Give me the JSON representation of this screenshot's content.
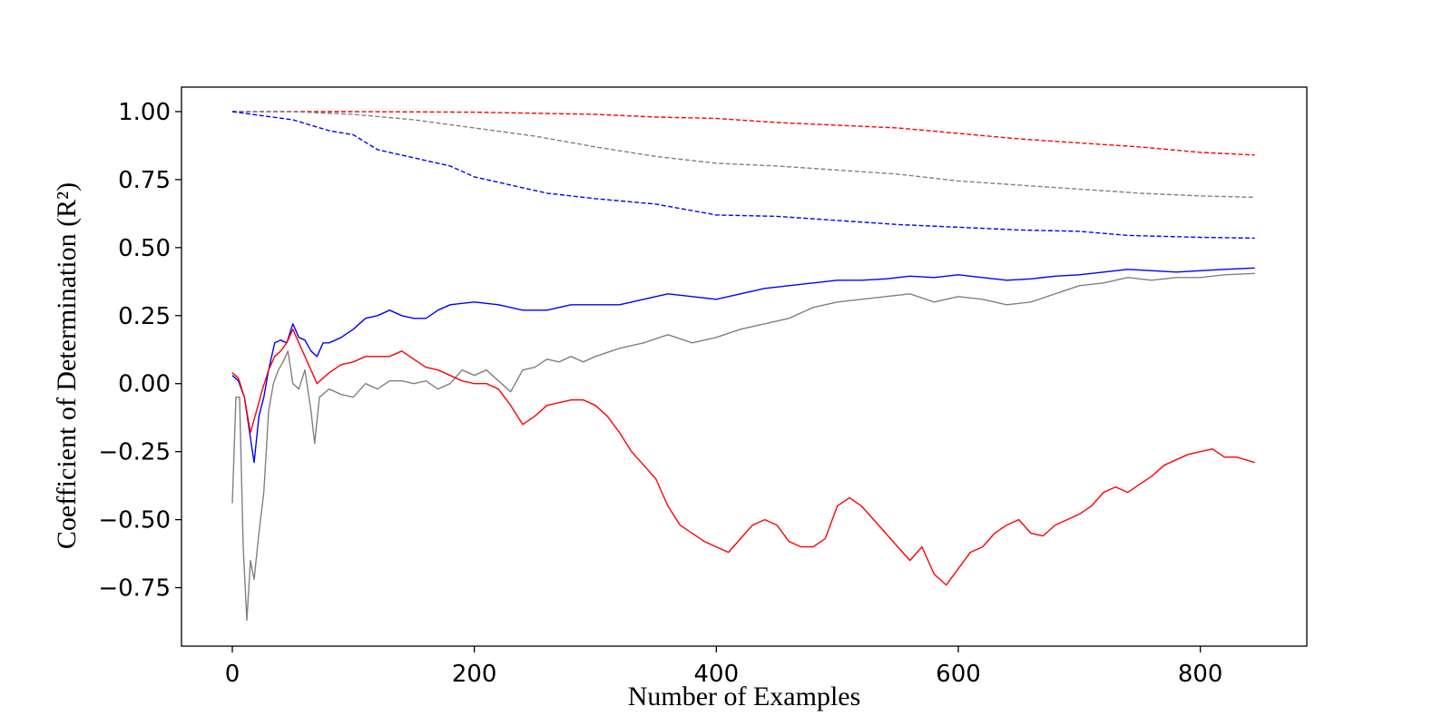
{
  "chart_data": {
    "type": "line",
    "title": "",
    "xlabel": "Number of Examples",
    "ylabel": "Coefficient of Determination (R²)",
    "xlim": [
      -42,
      888
    ],
    "ylim": [
      -0.965,
      1.09
    ],
    "xticks": [
      0,
      200,
      400,
      600,
      800
    ],
    "yticks": [
      1.0,
      0.75,
      0.5,
      0.25,
      0.0,
      -0.25,
      -0.5,
      -0.75
    ],
    "xtick_labels": [
      "0",
      "200",
      "400",
      "600",
      "800"
    ],
    "ytick_labels": [
      "1.00",
      "0.75",
      "0.50",
      "0.25",
      "0.00",
      "−0.25",
      "−0.50",
      "−0.75"
    ],
    "grid": false,
    "legend": "none",
    "series": [
      {
        "color": "#ff0000",
        "style": "dashed",
        "points": [
          [
            0,
            1.0
          ],
          [
            100,
            1.0
          ],
          [
            200,
            0.998
          ],
          [
            300,
            0.99
          ],
          [
            350,
            0.98
          ],
          [
            400,
            0.975
          ],
          [
            450,
            0.96
          ],
          [
            500,
            0.95
          ],
          [
            550,
            0.94
          ],
          [
            600,
            0.92
          ],
          [
            650,
            0.9
          ],
          [
            700,
            0.885
          ],
          [
            750,
            0.87
          ],
          [
            800,
            0.85
          ],
          [
            845,
            0.84
          ]
        ]
      },
      {
        "color": "#808080",
        "style": "dashed",
        "points": [
          [
            0,
            1.0
          ],
          [
            50,
            1.0
          ],
          [
            100,
            0.99
          ],
          [
            150,
            0.97
          ],
          [
            200,
            0.94
          ],
          [
            250,
            0.91
          ],
          [
            300,
            0.87
          ],
          [
            350,
            0.835
          ],
          [
            400,
            0.81
          ],
          [
            450,
            0.8
          ],
          [
            500,
            0.785
          ],
          [
            550,
            0.77
          ],
          [
            600,
            0.745
          ],
          [
            650,
            0.73
          ],
          [
            700,
            0.715
          ],
          [
            750,
            0.7
          ],
          [
            800,
            0.69
          ],
          [
            845,
            0.685
          ]
        ]
      },
      {
        "color": "#0000ff",
        "style": "dashed",
        "points": [
          [
            0,
            1.0
          ],
          [
            50,
            0.97
          ],
          [
            80,
            0.93
          ],
          [
            100,
            0.915
          ],
          [
            120,
            0.86
          ],
          [
            150,
            0.83
          ],
          [
            180,
            0.8
          ],
          [
            200,
            0.76
          ],
          [
            230,
            0.73
          ],
          [
            260,
            0.7
          ],
          [
            300,
            0.68
          ],
          [
            350,
            0.66
          ],
          [
            400,
            0.62
          ],
          [
            450,
            0.615
          ],
          [
            500,
            0.6
          ],
          [
            550,
            0.585
          ],
          [
            600,
            0.575
          ],
          [
            650,
            0.565
          ],
          [
            700,
            0.56
          ],
          [
            740,
            0.545
          ],
          [
            800,
            0.538
          ],
          [
            845,
            0.535
          ]
        ]
      },
      {
        "color": "#0000ff",
        "style": "solid",
        "points": [
          [
            0,
            0.03
          ],
          [
            5,
            0.01
          ],
          [
            10,
            -0.05
          ],
          [
            15,
            -0.2
          ],
          [
            18,
            -0.29
          ],
          [
            22,
            -0.12
          ],
          [
            26,
            -0.05
          ],
          [
            30,
            0.05
          ],
          [
            35,
            0.15
          ],
          [
            40,
            0.16
          ],
          [
            45,
            0.15
          ],
          [
            50,
            0.22
          ],
          [
            55,
            0.17
          ],
          [
            60,
            0.16
          ],
          [
            65,
            0.12
          ],
          [
            70,
            0.1
          ],
          [
            75,
            0.15
          ],
          [
            80,
            0.15
          ],
          [
            90,
            0.17
          ],
          [
            100,
            0.2
          ],
          [
            110,
            0.24
          ],
          [
            120,
            0.25
          ],
          [
            130,
            0.27
          ],
          [
            140,
            0.25
          ],
          [
            150,
            0.24
          ],
          [
            160,
            0.24
          ],
          [
            170,
            0.27
          ],
          [
            180,
            0.29
          ],
          [
            200,
            0.3
          ],
          [
            220,
            0.29
          ],
          [
            240,
            0.27
          ],
          [
            260,
            0.27
          ],
          [
            280,
            0.29
          ],
          [
            300,
            0.29
          ],
          [
            320,
            0.29
          ],
          [
            340,
            0.31
          ],
          [
            360,
            0.33
          ],
          [
            380,
            0.32
          ],
          [
            400,
            0.31
          ],
          [
            420,
            0.33
          ],
          [
            440,
            0.35
          ],
          [
            460,
            0.36
          ],
          [
            480,
            0.37
          ],
          [
            500,
            0.38
          ],
          [
            520,
            0.38
          ],
          [
            540,
            0.385
          ],
          [
            560,
            0.395
          ],
          [
            580,
            0.39
          ],
          [
            600,
            0.4
          ],
          [
            620,
            0.39
          ],
          [
            640,
            0.38
          ],
          [
            660,
            0.385
          ],
          [
            680,
            0.395
          ],
          [
            700,
            0.4
          ],
          [
            720,
            0.41
          ],
          [
            740,
            0.42
          ],
          [
            760,
            0.415
          ],
          [
            780,
            0.41
          ],
          [
            800,
            0.415
          ],
          [
            820,
            0.42
          ],
          [
            845,
            0.425
          ]
        ]
      },
      {
        "color": "#808080",
        "style": "solid",
        "points": [
          [
            0,
            -0.44
          ],
          [
            3,
            -0.05
          ],
          [
            6,
            -0.05
          ],
          [
            9,
            -0.6
          ],
          [
            12,
            -0.87
          ],
          [
            15,
            -0.65
          ],
          [
            18,
            -0.72
          ],
          [
            22,
            -0.55
          ],
          [
            26,
            -0.4
          ],
          [
            30,
            -0.1
          ],
          [
            34,
            0.0
          ],
          [
            38,
            0.05
          ],
          [
            42,
            0.08
          ],
          [
            46,
            0.12
          ],
          [
            50,
            0.0
          ],
          [
            55,
            -0.02
          ],
          [
            60,
            0.05
          ],
          [
            65,
            -0.1
          ],
          [
            68,
            -0.22
          ],
          [
            72,
            -0.05
          ],
          [
            80,
            -0.02
          ],
          [
            90,
            -0.04
          ],
          [
            100,
            -0.05
          ],
          [
            110,
            0.0
          ],
          [
            120,
            -0.02
          ],
          [
            130,
            0.01
          ],
          [
            140,
            0.01
          ],
          [
            150,
            0.0
          ],
          [
            160,
            0.01
          ],
          [
            170,
            -0.02
          ],
          [
            180,
            0.0
          ],
          [
            190,
            0.05
          ],
          [
            200,
            0.03
          ],
          [
            210,
            0.05
          ],
          [
            220,
            0.01
          ],
          [
            230,
            -0.03
          ],
          [
            240,
            0.05
          ],
          [
            250,
            0.06
          ],
          [
            260,
            0.09
          ],
          [
            270,
            0.08
          ],
          [
            280,
            0.1
          ],
          [
            290,
            0.08
          ],
          [
            300,
            0.1
          ],
          [
            320,
            0.13
          ],
          [
            340,
            0.15
          ],
          [
            360,
            0.18
          ],
          [
            380,
            0.15
          ],
          [
            400,
            0.17
          ],
          [
            420,
            0.2
          ],
          [
            440,
            0.22
          ],
          [
            460,
            0.24
          ],
          [
            480,
            0.28
          ],
          [
            500,
            0.3
          ],
          [
            520,
            0.31
          ],
          [
            540,
            0.32
          ],
          [
            560,
            0.33
          ],
          [
            580,
            0.3
          ],
          [
            600,
            0.32
          ],
          [
            620,
            0.31
          ],
          [
            640,
            0.29
          ],
          [
            660,
            0.3
          ],
          [
            680,
            0.33
          ],
          [
            700,
            0.36
          ],
          [
            720,
            0.37
          ],
          [
            740,
            0.39
          ],
          [
            760,
            0.38
          ],
          [
            780,
            0.39
          ],
          [
            800,
            0.39
          ],
          [
            820,
            0.4
          ],
          [
            845,
            0.405
          ]
        ]
      },
      {
        "color": "#ff0000",
        "style": "solid",
        "points": [
          [
            0,
            0.04
          ],
          [
            5,
            0.02
          ],
          [
            10,
            -0.05
          ],
          [
            15,
            -0.18
          ],
          [
            20,
            -0.1
          ],
          [
            25,
            -0.02
          ],
          [
            30,
            0.05
          ],
          [
            35,
            0.1
          ],
          [
            40,
            0.12
          ],
          [
            45,
            0.15
          ],
          [
            50,
            0.2
          ],
          [
            55,
            0.15
          ],
          [
            60,
            0.1
          ],
          [
            65,
            0.05
          ],
          [
            70,
            0.0
          ],
          [
            80,
            0.04
          ],
          [
            90,
            0.07
          ],
          [
            100,
            0.08
          ],
          [
            110,
            0.1
          ],
          [
            120,
            0.1
          ],
          [
            130,
            0.1
          ],
          [
            140,
            0.12
          ],
          [
            150,
            0.09
          ],
          [
            160,
            0.06
          ],
          [
            170,
            0.05
          ],
          [
            180,
            0.03
          ],
          [
            190,
            0.01
          ],
          [
            200,
            0.0
          ],
          [
            210,
            0.0
          ],
          [
            220,
            -0.02
          ],
          [
            230,
            -0.08
          ],
          [
            240,
            -0.15
          ],
          [
            250,
            -0.12
          ],
          [
            260,
            -0.08
          ],
          [
            270,
            -0.07
          ],
          [
            280,
            -0.06
          ],
          [
            290,
            -0.06
          ],
          [
            300,
            -0.08
          ],
          [
            310,
            -0.12
          ],
          [
            320,
            -0.18
          ],
          [
            330,
            -0.25
          ],
          [
            340,
            -0.3
          ],
          [
            350,
            -0.35
          ],
          [
            360,
            -0.45
          ],
          [
            370,
            -0.52
          ],
          [
            380,
            -0.55
          ],
          [
            390,
            -0.58
          ],
          [
            400,
            -0.6
          ],
          [
            410,
            -0.62
          ],
          [
            420,
            -0.57
          ],
          [
            430,
            -0.52
          ],
          [
            440,
            -0.5
          ],
          [
            450,
            -0.52
          ],
          [
            460,
            -0.58
          ],
          [
            470,
            -0.6
          ],
          [
            480,
            -0.6
          ],
          [
            490,
            -0.57
          ],
          [
            500,
            -0.45
          ],
          [
            510,
            -0.42
          ],
          [
            520,
            -0.45
          ],
          [
            530,
            -0.5
          ],
          [
            540,
            -0.55
          ],
          [
            550,
            -0.6
          ],
          [
            560,
            -0.65
          ],
          [
            570,
            -0.6
          ],
          [
            580,
            -0.7
          ],
          [
            590,
            -0.74
          ],
          [
            600,
            -0.68
          ],
          [
            610,
            -0.62
          ],
          [
            620,
            -0.6
          ],
          [
            630,
            -0.55
          ],
          [
            640,
            -0.52
          ],
          [
            650,
            -0.5
          ],
          [
            660,
            -0.55
          ],
          [
            670,
            -0.56
          ],
          [
            680,
            -0.52
          ],
          [
            690,
            -0.5
          ],
          [
            700,
            -0.48
          ],
          [
            710,
            -0.45
          ],
          [
            720,
            -0.4
          ],
          [
            730,
            -0.38
          ],
          [
            740,
            -0.4
          ],
          [
            750,
            -0.37
          ],
          [
            760,
            -0.34
          ],
          [
            770,
            -0.3
          ],
          [
            780,
            -0.28
          ],
          [
            790,
            -0.26
          ],
          [
            800,
            -0.25
          ],
          [
            810,
            -0.24
          ],
          [
            820,
            -0.27
          ],
          [
            830,
            -0.27
          ],
          [
            845,
            -0.29
          ]
        ]
      }
    ]
  }
}
